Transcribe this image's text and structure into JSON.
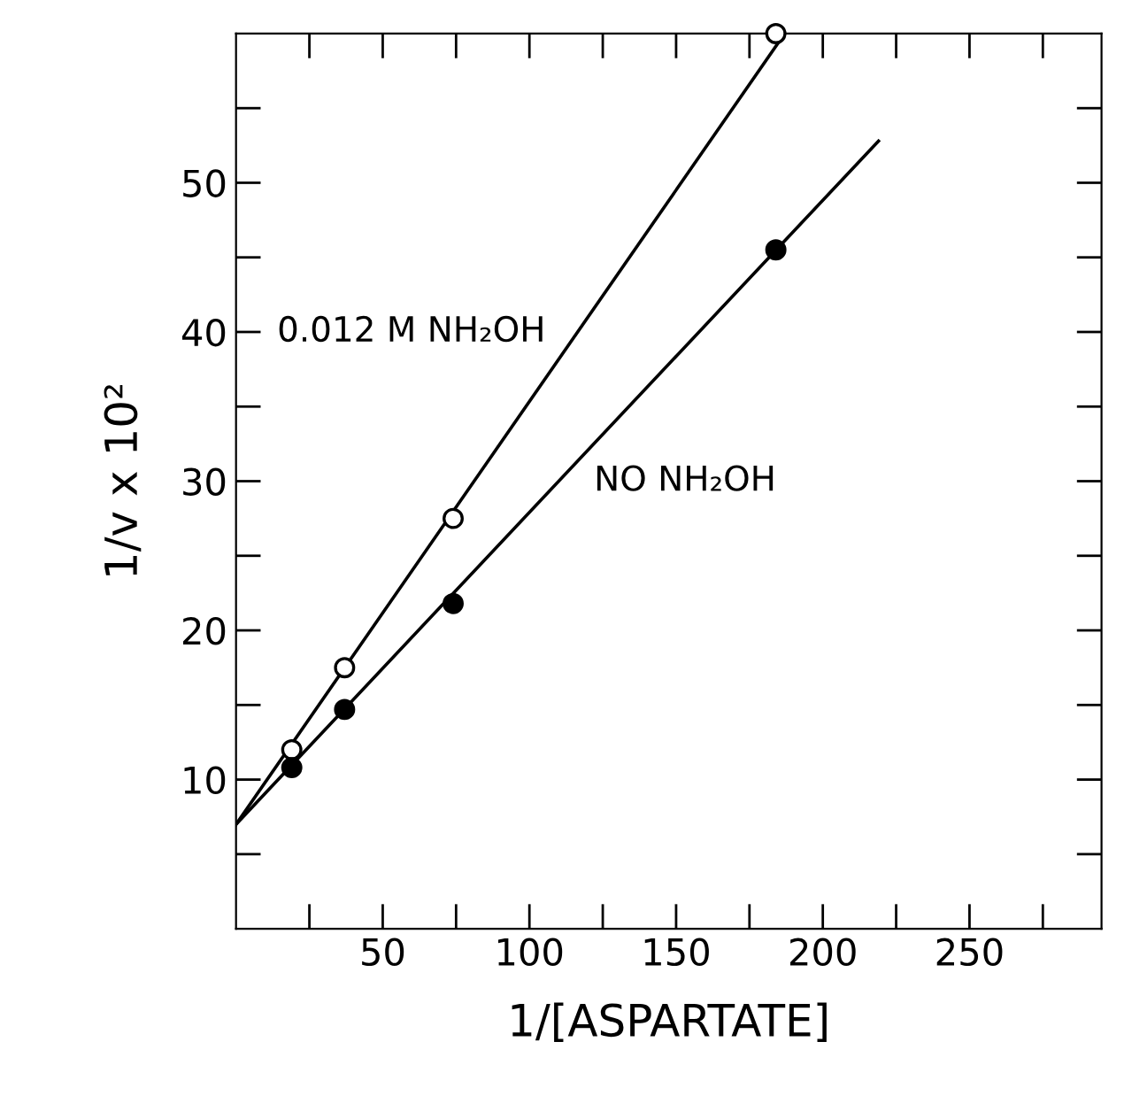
{
  "chart_data": {
    "type": "scatter",
    "xlabel": "1/[ASPARTATE]",
    "ylabel": "1/v x 10²",
    "xlim": [
      0,
      295
    ],
    "ylim": [
      0,
      60
    ],
    "xticks": [
      {
        "value": 25,
        "label": null
      },
      50,
      {
        "value": 75,
        "label": null
      },
      100,
      {
        "value": 125,
        "label": null
      },
      150,
      {
        "value": 175,
        "label": null
      },
      200,
      {
        "value": 225,
        "label": null
      },
      250,
      {
        "value": 275,
        "label": null
      }
    ],
    "yticks": [
      {
        "value": 5,
        "label": null
      },
      10,
      {
        "value": 15,
        "label": null
      },
      20,
      {
        "value": 25,
        "label": null
      },
      30,
      {
        "value": 35,
        "label": null
      },
      40,
      {
        "value": 45,
        "label": null
      },
      50,
      {
        "value": 55,
        "label": null
      }
    ],
    "grid": false,
    "legend": false,
    "series": [
      {
        "marker": "circle",
        "color": "#ffffff",
        "x": [
          19,
          37,
          74,
          184
        ],
        "values": [
          12.0,
          17.5,
          27.5,
          60
        ]
      },
      {
        "marker": "circle",
        "color": "#000000",
        "x": [
          19,
          37,
          74,
          184
        ],
        "values": [
          10.8,
          14.7,
          21.8,
          45.5
        ]
      },
      {
        "name": "0.012 M NH₂OH",
        "type": "line",
        "color": "#000000",
        "line_style": "solid",
        "x": [
          0,
          187
        ],
        "values": [
          7,
          60
        ]
      },
      {
        "name": "NO NH₂OH",
        "type": "line",
        "color": "#000000",
        "line_style": "solid",
        "x": [
          0,
          219
        ],
        "values": [
          7,
          52.8
        ]
      }
    ]
  }
}
